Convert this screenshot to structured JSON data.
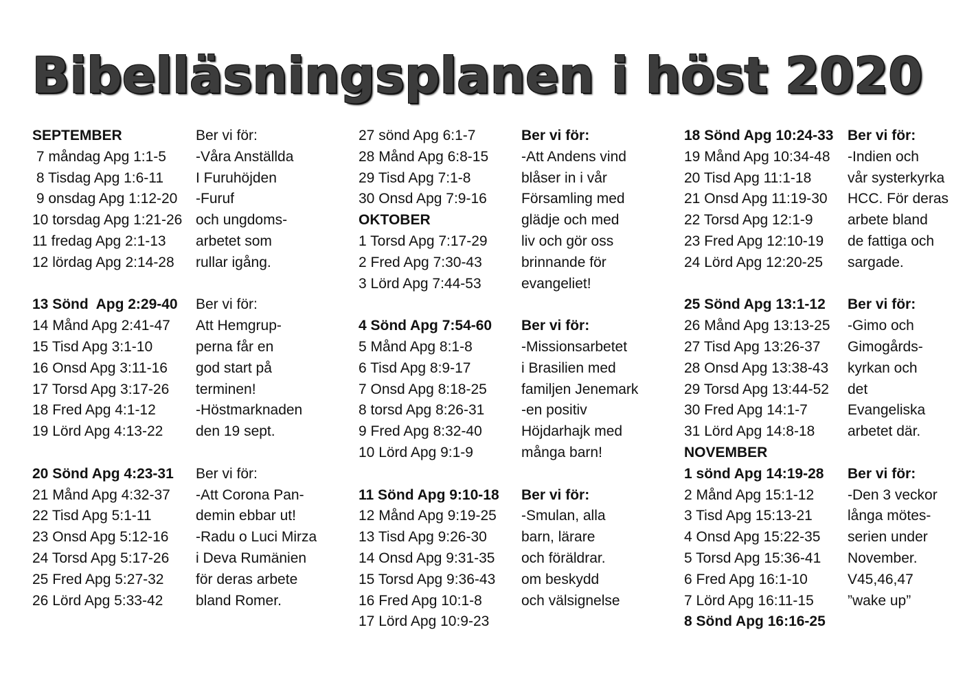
{
  "title": "Bibelläsningsplanen i höst 2020",
  "columns": [
    {
      "id": "c1",
      "lines": [
        {
          "text": "SEPTEMBER",
          "bold": true
        },
        {
          "text": " 7 måndag Apg 1:1-5"
        },
        {
          "text": " 8 Tisdag Apg 1:6-11"
        },
        {
          "text": " 9 onsdag Apg 1:12-20"
        },
        {
          "text": "10 torsdag Apg 1:21-26"
        },
        {
          "text": "11 fredag Apg 2:1-13"
        },
        {
          "text": "12 lördag Apg 2:14-28"
        },
        {
          "text": ""
        },
        {
          "text": "13 Sönd  Apg 2:29-40",
          "bold": true
        },
        {
          "text": "14 Månd Apg 2:41-47"
        },
        {
          "text": "15 Tisd Apg 3:1-10"
        },
        {
          "text": "16 Onsd Apg 3:11-16"
        },
        {
          "text": "17 Torsd Apg 3:17-26"
        },
        {
          "text": "18 Fred Apg 4:1-12"
        },
        {
          "text": "19 Lörd Apg 4:13-22"
        },
        {
          "text": ""
        },
        {
          "text": "20 Sönd Apg 4:23-31",
          "bold": true
        },
        {
          "text": "21 Månd Apg 4:32-37"
        },
        {
          "text": "22 Tisd Apg 5:1-11"
        },
        {
          "text": "23 Onsd Apg 5:12-16"
        },
        {
          "text": "24 Torsd Apg 5:17-26"
        },
        {
          "text": "25 Fred Apg 5:27-32"
        },
        {
          "text": "26 Lörd Apg 5:33-42"
        }
      ]
    },
    {
      "id": "c2",
      "lines": [
        {
          "text": "Ber vi för:"
        },
        {
          "text": "-Våra Anställda"
        },
        {
          "text": "I Furuhöjden"
        },
        {
          "text": "-Furuf"
        },
        {
          "text": "och ungdoms-"
        },
        {
          "text": "arbetet som"
        },
        {
          "text": "rullar igång."
        },
        {
          "text": ""
        },
        {
          "text": "Ber vi för:"
        },
        {
          "text": "Att Hemgrup-"
        },
        {
          "text": "perna får en"
        },
        {
          "text": "god start på"
        },
        {
          "text": "terminen!"
        },
        {
          "text": "-Höstmarknaden"
        },
        {
          "text": "den 19 sept."
        },
        {
          "text": ""
        },
        {
          "text": "Ber vi för:"
        },
        {
          "text": "-Att Corona Pan-"
        },
        {
          "text": "demin ebbar ut!"
        },
        {
          "text": "-Radu o Luci Mirza"
        },
        {
          "text": "i Deva Rumänien"
        },
        {
          "text": "för deras arbete"
        },
        {
          "text": "bland Romer."
        }
      ]
    },
    {
      "id": "c3",
      "lines": [
        {
          "text": "27 sönd Apg 6:1-7"
        },
        {
          "text": "28 Månd Apg 6:8-15"
        },
        {
          "text": "29 Tisd Apg 7:1-8"
        },
        {
          "text": "30 Onsd Apg 7:9-16"
        },
        {
          "text": "OKTOBER",
          "bold": true
        },
        {
          "text": "1 Torsd Apg 7:17-29"
        },
        {
          "text": "2 Fred Apg 7:30-43"
        },
        {
          "text": "3 Lörd Apg 7:44-53"
        },
        {
          "text": ""
        },
        {
          "text": "4 Sönd Apg 7:54-60",
          "bold": true
        },
        {
          "text": "5 Månd Apg 8:1-8"
        },
        {
          "text": "6 Tisd Apg 8:9-17"
        },
        {
          "text": "7 Onsd Apg 8:18-25"
        },
        {
          "text": "8 torsd Apg 8:26-31"
        },
        {
          "text": "9 Fred Apg 8:32-40"
        },
        {
          "text": "10 Lörd Apg 9:1-9"
        },
        {
          "text": ""
        },
        {
          "text": "11 Sönd Apg 9:10-18",
          "bold": true
        },
        {
          "text": "12 Månd Apg 9:19-25"
        },
        {
          "text": "13 Tisd Apg 9:26-30"
        },
        {
          "text": "14 Onsd Apg 9:31-35"
        },
        {
          "text": "15 Torsd Apg 9:36-43"
        },
        {
          "text": "16 Fred Apg 10:1-8"
        },
        {
          "text": "17 Lörd Apg 10:9-23"
        }
      ]
    },
    {
      "id": "c4",
      "lines": [
        {
          "text": "Ber vi för:",
          "bold": true
        },
        {
          "text": "-Att Andens vind"
        },
        {
          "text": "blåser in i vår"
        },
        {
          "text": "Församling med"
        },
        {
          "text": "glädje och med"
        },
        {
          "text": "liv och gör oss"
        },
        {
          "text": "brinnande för"
        },
        {
          "text": "evangeliet!"
        },
        {
          "text": ""
        },
        {
          "text": "Ber vi för:",
          "bold": true
        },
        {
          "text": "-Missionsarbetet"
        },
        {
          "text": "i Brasilien med"
        },
        {
          "text": "familjen Jenemark"
        },
        {
          "text": "-en positiv"
        },
        {
          "text": "Höjdarhajk med"
        },
        {
          "text": "många barn!"
        },
        {
          "text": ""
        },
        {
          "text": "Ber vi för:",
          "bold": true
        },
        {
          "text": "-Smulan, alla"
        },
        {
          "text": "barn, lärare"
        },
        {
          "text": "och föräldrar."
        },
        {
          "text": "om beskydd"
        },
        {
          "text": "och välsignelse"
        }
      ]
    },
    {
      "id": "c5",
      "lines": [
        {
          "text": "18 Sönd Apg 10:24-33",
          "bold": true
        },
        {
          "text": "19 Månd Apg 10:34-48"
        },
        {
          "text": "20 Tisd Apg 11:1-18"
        },
        {
          "text": "21 Onsd Apg 11:19-30"
        },
        {
          "text": "22 Torsd Apg 12:1-9"
        },
        {
          "text": "23 Fred Apg 12:10-19"
        },
        {
          "text": "24 Lörd Apg 12:20-25"
        },
        {
          "text": ""
        },
        {
          "text": "25 Sönd Apg 13:1-12",
          "bold": true
        },
        {
          "text": "26 Månd Apg 13:13-25"
        },
        {
          "text": "27 Tisd Apg 13:26-37"
        },
        {
          "text": "28 Onsd Apg 13:38-43"
        },
        {
          "text": "29 Torsd Apg 13:44-52"
        },
        {
          "text": "30 Fred Apg 14:1-7"
        },
        {
          "text": "31 Lörd Apg 14:8-18"
        },
        {
          "text": "NOVEMBER",
          "bold": true
        },
        {
          "text": "1 sönd Apg 14:19-28",
          "bold": true
        },
        {
          "text": "2 Månd Apg 15:1-12"
        },
        {
          "text": "3 Tisd Apg 15:13-21"
        },
        {
          "text": "4 Onsd Apg 15:22-35"
        },
        {
          "text": "5 Torsd Apg 15:36-41"
        },
        {
          "text": "6 Fred Apg 16:1-10"
        },
        {
          "text": "7 Lörd Apg 16:11-15"
        },
        {
          "text": "8 Sönd Apg 16:16-25",
          "bold": true
        }
      ]
    },
    {
      "id": "c6",
      "lines": [
        {
          "text": "Ber vi för:",
          "bold": true
        },
        {
          "text": "-Indien och"
        },
        {
          "text": "vår systerkyrka"
        },
        {
          "text": "HCC. För deras"
        },
        {
          "text": "arbete bland"
        },
        {
          "text": "de fattiga och"
        },
        {
          "text": "sargade."
        },
        {
          "text": ""
        },
        {
          "text": "Ber vi för:",
          "bold": true
        },
        {
          "text": "-Gimo och"
        },
        {
          "text": "Gimogårds-"
        },
        {
          "text": "kyrkan och"
        },
        {
          "text": "det"
        },
        {
          "text": "Evangeliska"
        },
        {
          "text": "arbetet där."
        },
        {
          "text": ""
        },
        {
          "text": "Ber vi för:",
          "bold": true
        },
        {
          "text": "-Den 3 veckor"
        },
        {
          "text": "långa mötes-"
        },
        {
          "text": "serien under"
        },
        {
          "text": "November."
        },
        {
          "text": "V45,46,47"
        },
        {
          "text": "”wake up”"
        }
      ]
    }
  ]
}
